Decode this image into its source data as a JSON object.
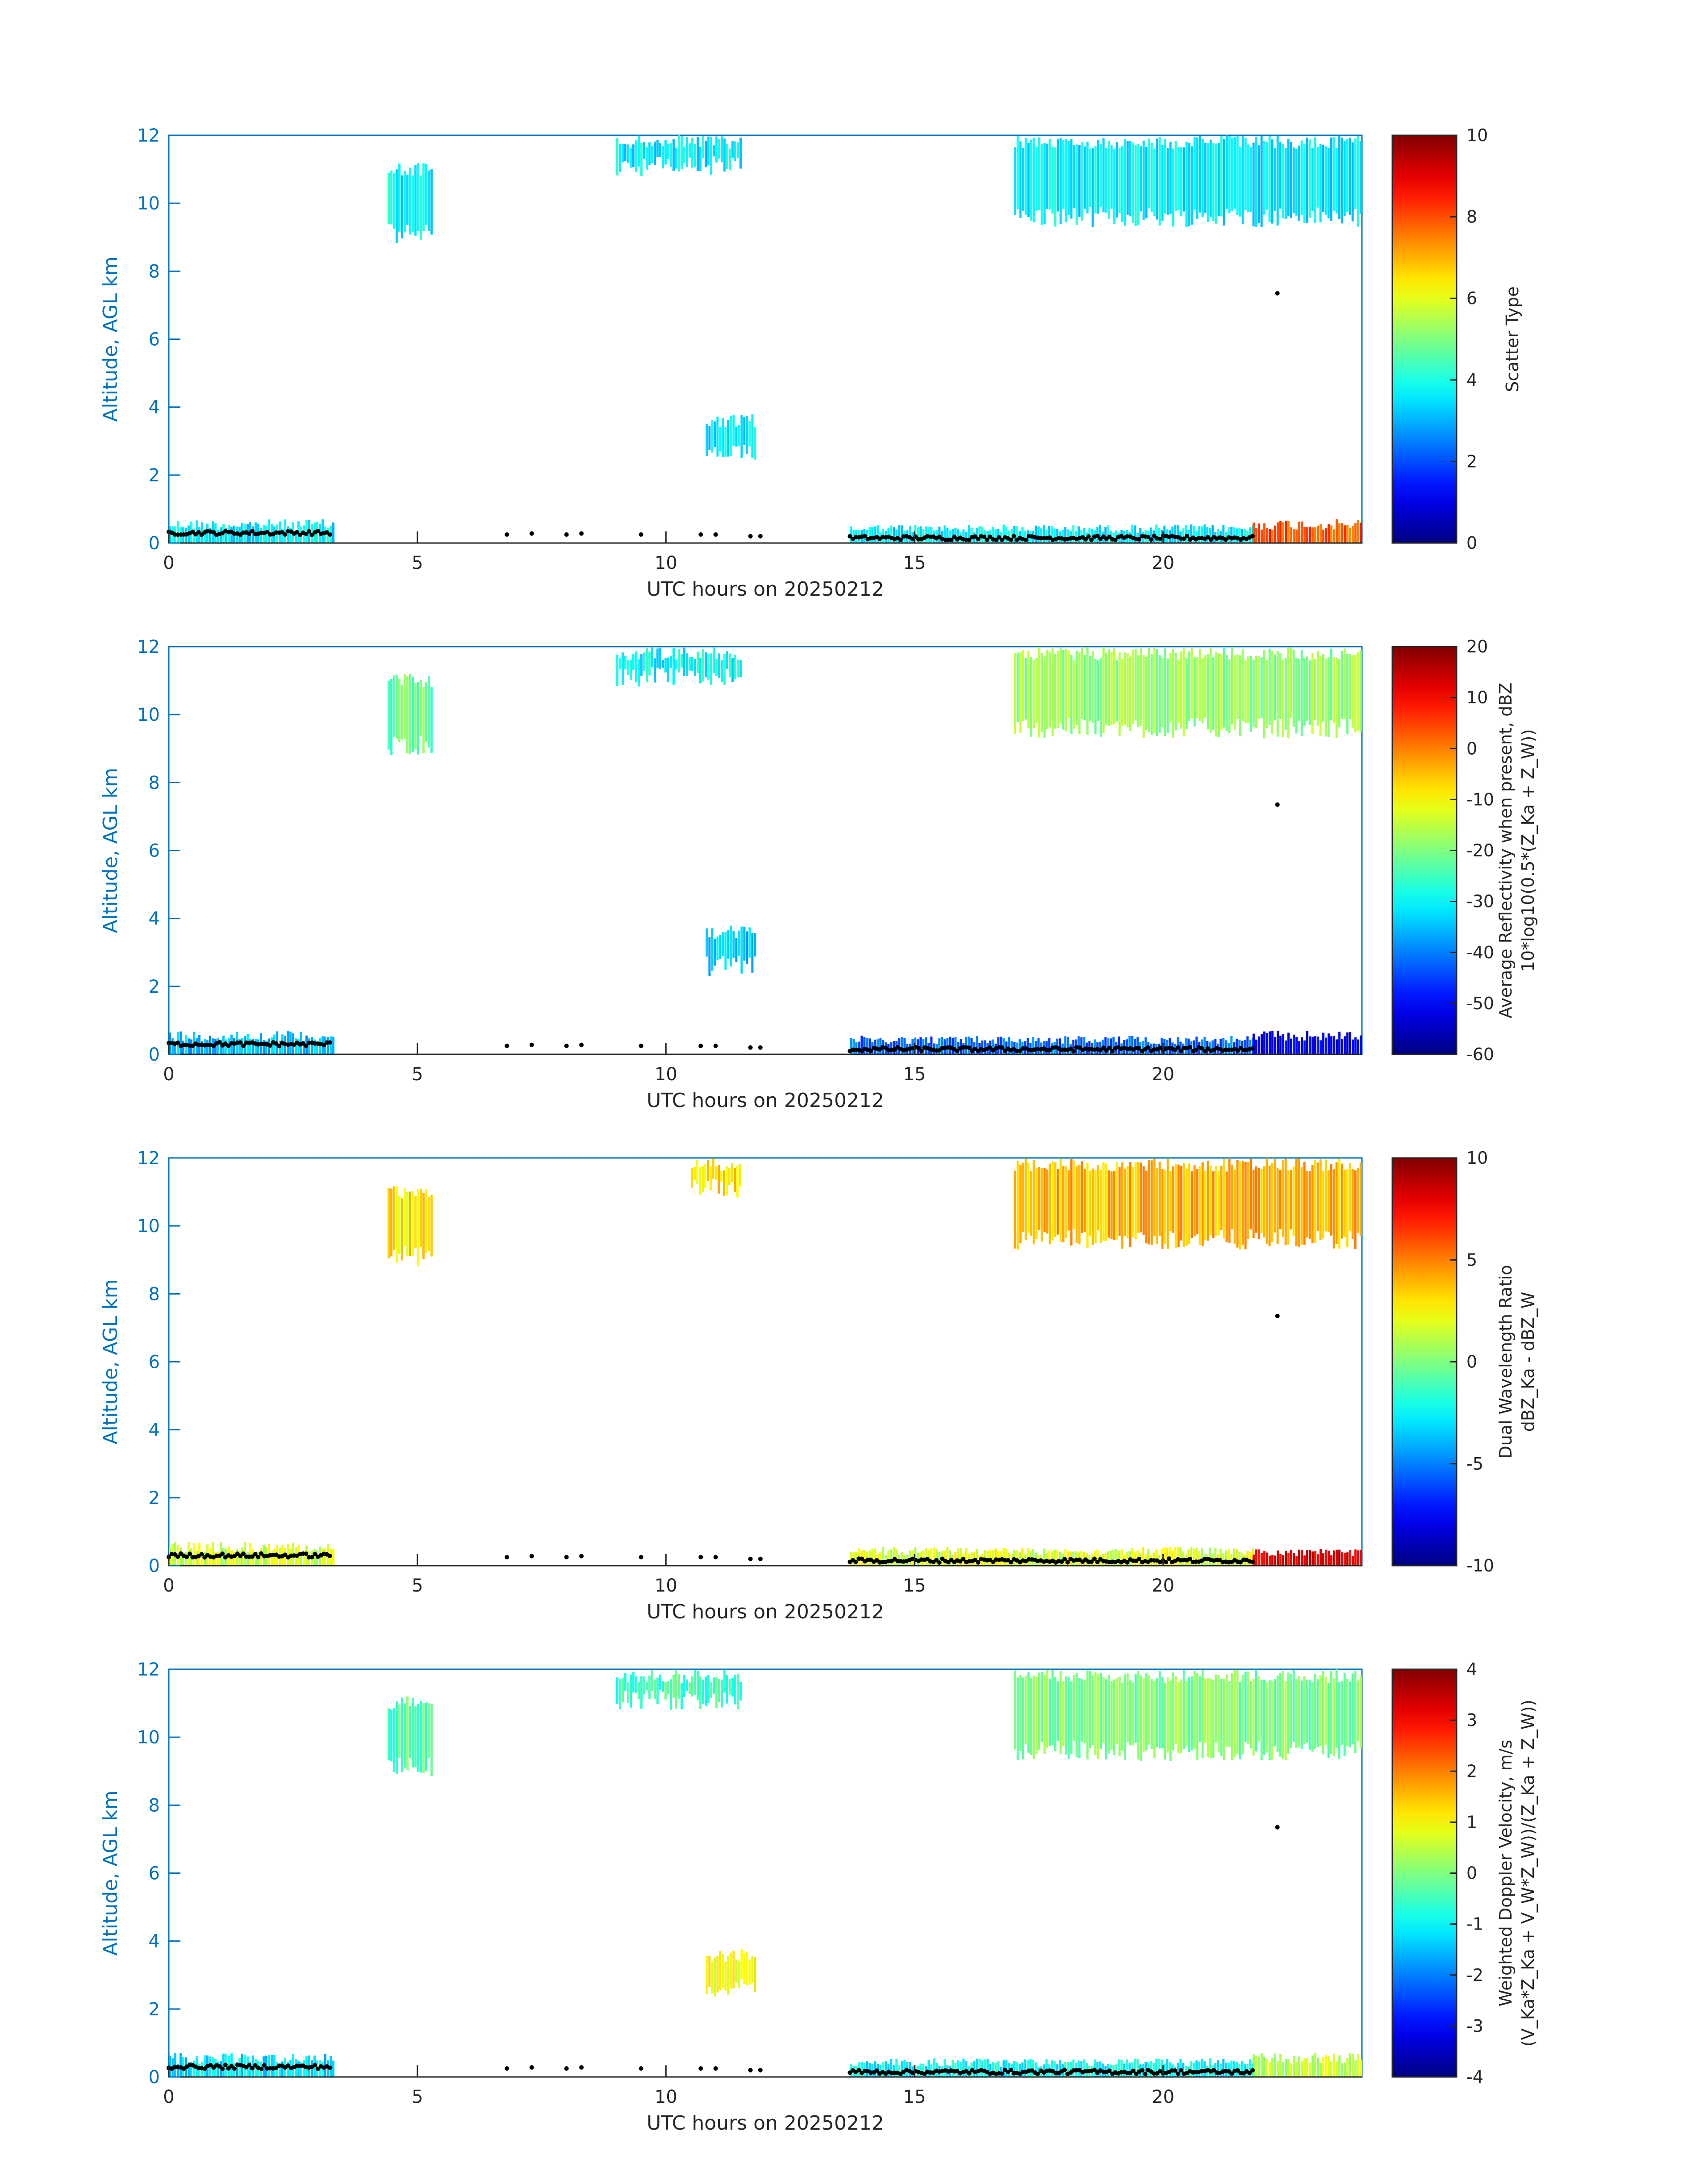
{
  "figure": {
    "shared_x_label": "UTC hours on 20250212",
    "y_label": "Altitude, AGL km",
    "x_ticks": [
      0,
      5,
      10,
      15,
      20
    ],
    "y_ticks": [
      0,
      2,
      4,
      6,
      8,
      10,
      12
    ],
    "xlim": [
      0,
      24
    ],
    "ylim": [
      0,
      12
    ],
    "colors": {
      "axis_blue": "#0072BD",
      "text": "#262626",
      "colormap": "jet"
    }
  },
  "chart_data": [
    {
      "type": "heatmap",
      "xlabel": "UTC hours on 20250212",
      "ylabel": "Altitude, AGL km",
      "xlim": [
        0,
        24
      ],
      "ylim": [
        0,
        12
      ],
      "colorbar": {
        "label_lines": [
          "Scatter Type"
        ],
        "ticks": [
          0,
          2,
          4,
          6,
          8,
          10
        ],
        "clim": [
          0,
          10
        ]
      },
      "regions": [
        {
          "x0": 0.0,
          "x1": 3.3,
          "top": 0.7,
          "value": 3.6
        },
        {
          "x0": 13.7,
          "x1": 21.8,
          "top": 0.55,
          "value": 3.6
        },
        {
          "x0": 21.8,
          "x1": 24.0,
          "top": 0.7,
          "value": 8.0
        },
        {
          "x0": 17.0,
          "x1": 24.0,
          "bottom": 9.3,
          "top": 12.0,
          "value": 3.6
        },
        {
          "x0": 4.4,
          "x1": 5.3,
          "bottom": 8.8,
          "top": 11.2,
          "value": 3.6
        },
        {
          "x0": 9.0,
          "x1": 11.5,
          "bottom": 10.8,
          "top": 12.0,
          "value": 3.6
        },
        {
          "x0": 10.8,
          "x1": 11.8,
          "bottom": 2.3,
          "top": 3.8,
          "value": 3.6
        }
      ]
    },
    {
      "type": "heatmap",
      "xlabel": "UTC hours on 20250212",
      "ylabel": "Altitude, AGL km",
      "xlim": [
        0,
        24
      ],
      "ylim": [
        0,
        12
      ],
      "colorbar": {
        "label_lines": [
          "Average Reflectivity when present, dBZ",
          "10*log10(0.5*(Z_Ka + Z_W))"
        ],
        "ticks": [
          -60,
          -50,
          -40,
          -30,
          -20,
          -10,
          0,
          10,
          20
        ],
        "clim": [
          -60,
          20
        ]
      },
      "regions": [
        {
          "x0": 0.0,
          "x1": 3.3,
          "top": 0.7,
          "value": -35
        },
        {
          "x0": 13.7,
          "x1": 21.8,
          "top": 0.55,
          "value": -42
        },
        {
          "x0": 21.8,
          "x1": 24.0,
          "top": 0.7,
          "value": -52
        },
        {
          "x0": 17.0,
          "x1": 24.0,
          "bottom": 9.3,
          "top": 12.0,
          "value": -18
        },
        {
          "x0": 4.4,
          "x1": 5.3,
          "bottom": 8.8,
          "top": 11.2,
          "value": -22
        },
        {
          "x0": 9.0,
          "x1": 11.5,
          "bottom": 10.8,
          "top": 12.0,
          "value": -30
        },
        {
          "x0": 10.8,
          "x1": 11.8,
          "bottom": 2.3,
          "top": 3.8,
          "value": -35
        }
      ]
    },
    {
      "type": "heatmap",
      "xlabel": "UTC hours on 20250212",
      "ylabel": "Altitude, AGL km",
      "xlim": [
        0,
        24
      ],
      "ylim": [
        0,
        12
      ],
      "colorbar": {
        "label_lines": [
          "Dual Wavelength Ratio",
          "dBZ_Ka - dBZ_W"
        ],
        "ticks": [
          -10,
          -5,
          0,
          5,
          10
        ],
        "clim": [
          -10,
          10
        ]
      },
      "regions": [
        {
          "x0": 0.0,
          "x1": 3.3,
          "top": 0.7,
          "value": 1.5
        },
        {
          "x0": 13.7,
          "x1": 21.8,
          "top": 0.55,
          "value": 1.8
        },
        {
          "x0": 21.8,
          "x1": 24.0,
          "top": 0.5,
          "value": 8.0
        },
        {
          "x0": 17.0,
          "x1": 24.0,
          "bottom": 9.3,
          "top": 12.0,
          "value": 4.0
        },
        {
          "x0": 4.4,
          "x1": 5.3,
          "bottom": 8.8,
          "top": 11.2,
          "value": 3.0
        },
        {
          "x0": 10.5,
          "x1": 11.5,
          "bottom": 10.8,
          "top": 12.0,
          "value": 3.0
        }
      ]
    },
    {
      "type": "heatmap",
      "xlabel": "UTC hours on 20250212",
      "ylabel": "Altitude, AGL km",
      "xlim": [
        0,
        24
      ],
      "ylim": [
        0,
        12
      ],
      "colorbar": {
        "label_lines": [
          "Weighted Doppler Velocity, m/s",
          "(V_Ka*Z_Ka + V_W*Z_W))/(Z_Ka + Z_W))"
        ],
        "ticks": [
          -4,
          -3,
          -2,
          -1,
          0,
          1,
          2,
          3,
          4
        ],
        "clim": [
          -4,
          4
        ]
      },
      "regions": [
        {
          "x0": 0.0,
          "x1": 3.3,
          "top": 0.7,
          "value": -1.2
        },
        {
          "x0": 13.7,
          "x1": 21.8,
          "top": 0.55,
          "value": -1.0
        },
        {
          "x0": 21.8,
          "x1": 24.0,
          "top": 0.7,
          "value": 0.5
        },
        {
          "x0": 17.0,
          "x1": 24.0,
          "bottom": 9.3,
          "top": 12.0,
          "value": 0.0
        },
        {
          "x0": 4.4,
          "x1": 5.3,
          "bottom": 8.8,
          "top": 11.2,
          "value": -0.3
        },
        {
          "x0": 9.0,
          "x1": 11.5,
          "bottom": 10.8,
          "top": 12.0,
          "value": -0.5
        },
        {
          "x0": 10.8,
          "x1": 11.8,
          "bottom": 2.3,
          "top": 3.8,
          "value": 1.0
        }
      ]
    }
  ],
  "cloud_base_markers": {
    "description_hidden": true,
    "segments": [
      {
        "x0": 0.0,
        "x1": 3.3,
        "y": 0.3
      },
      {
        "x0": 13.7,
        "x1": 21.8,
        "y": 0.15
      }
    ],
    "isolated": [
      {
        "x": 6.8,
        "y": 0.25
      },
      {
        "x": 7.3,
        "y": 0.28
      },
      {
        "x": 8.0,
        "y": 0.25
      },
      {
        "x": 8.3,
        "y": 0.28
      },
      {
        "x": 9.5,
        "y": 0.25
      },
      {
        "x": 10.7,
        "y": 0.25
      },
      {
        "x": 11.0,
        "y": 0.25
      },
      {
        "x": 11.7,
        "y": 0.2
      },
      {
        "x": 11.9,
        "y": 0.2
      },
      {
        "x": 22.3,
        "y": 7.35
      }
    ]
  }
}
